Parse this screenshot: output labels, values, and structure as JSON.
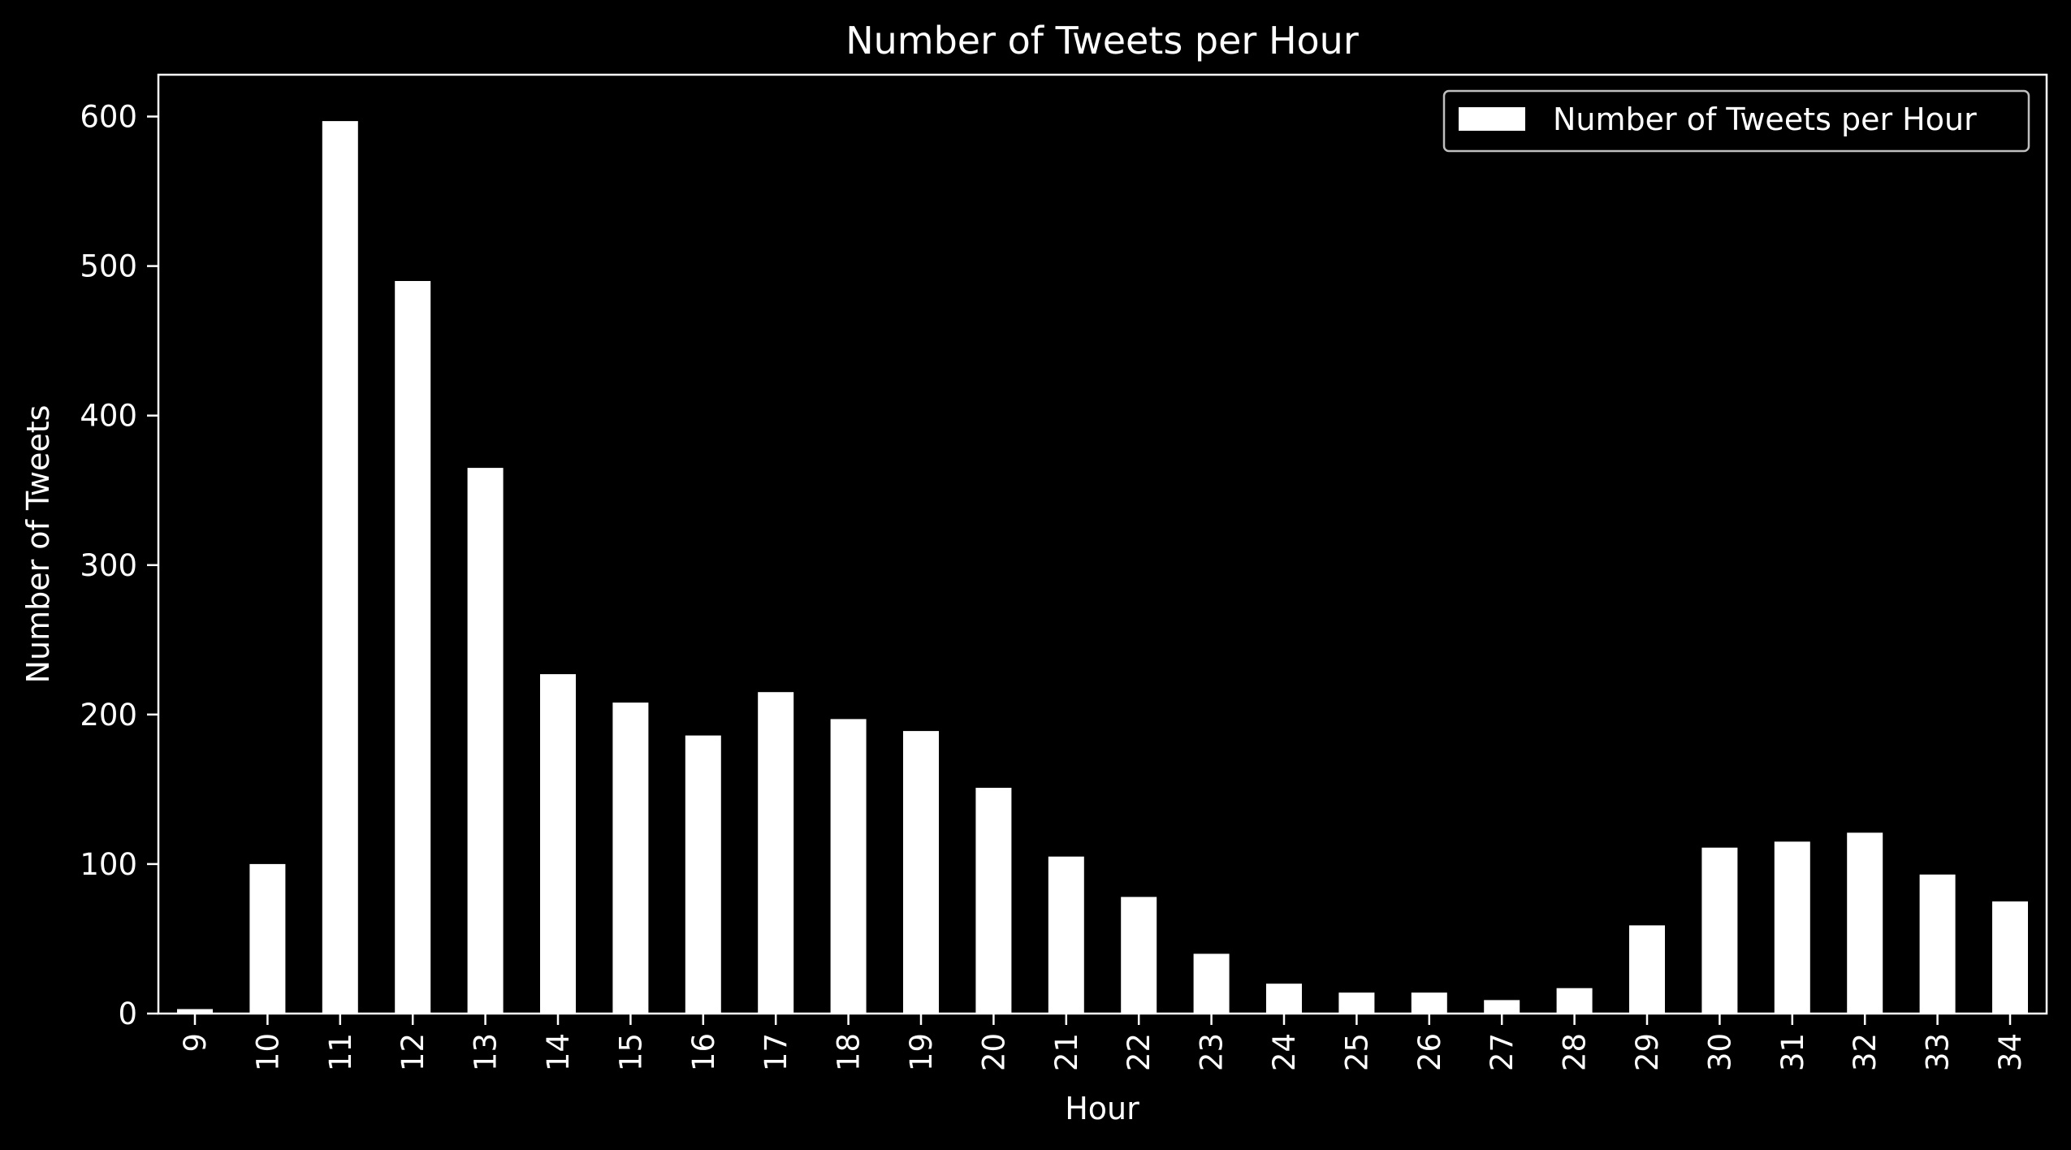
{
  "chart_data": {
    "type": "bar",
    "title": "Number of Tweets per Hour",
    "xlabel": "Hour",
    "ylabel": "Number of Tweets",
    "categories": [
      "9",
      "10",
      "11",
      "12",
      "13",
      "14",
      "15",
      "16",
      "17",
      "18",
      "19",
      "20",
      "21",
      "22",
      "23",
      "24",
      "25",
      "26",
      "27",
      "28",
      "29",
      "30",
      "31",
      "32",
      "33",
      "34"
    ],
    "series": [
      {
        "name": "Number of Tweets per Hour",
        "values": [
          3,
          100,
          597,
          490,
          365,
          227,
          208,
          186,
          215,
          197,
          189,
          151,
          105,
          78,
          40,
          20,
          14,
          14,
          9,
          17,
          59,
          111,
          115,
          121,
          93,
          75
        ]
      }
    ],
    "yticks": [
      0,
      100,
      200,
      300,
      400,
      500,
      600
    ],
    "ylim": [
      0,
      628
    ],
    "grid": false,
    "legend_position": "top-right",
    "background_color": "#000000",
    "bar_color": "#ffffff",
    "axis_color": "#ffffff"
  }
}
